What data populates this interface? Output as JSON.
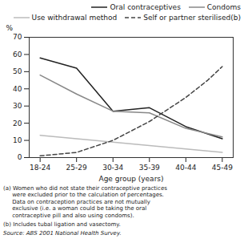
{
  "chart_data": {
    "type": "line",
    "xlabel": "Age group (years)",
    "ylabel": "%",
    "x": [
      0,
      1,
      2,
      3,
      4,
      5
    ],
    "xlim": [
      -0.3,
      5.3
    ],
    "xticks": [
      {
        "value": 0,
        "label": "18-24"
      },
      {
        "value": 1,
        "label": "25-29"
      },
      {
        "value": 2,
        "label": "30-34"
      },
      {
        "value": 3,
        "label": "35-39"
      },
      {
        "value": 4,
        "label": "40-44"
      },
      {
        "value": 5,
        "label": "45-49"
      }
    ],
    "ylim": [
      0,
      70
    ],
    "yticks": [
      0,
      10,
      20,
      30,
      40,
      50,
      60,
      70
    ],
    "legend": "upper right",
    "series": [
      {
        "name": "Oral contraceptives",
        "color": "#222222",
        "values": [
          58,
          52,
          27,
          29,
          18,
          11
        ]
      },
      {
        "name": "Condoms",
        "color": "#888888",
        "values": [
          48,
          37,
          27,
          26,
          17,
          12
        ]
      },
      {
        "name": "Use withdrawal method",
        "color": "#bbbbbb",
        "values": [
          13,
          11,
          9,
          7,
          5,
          3
        ]
      },
      {
        "name": "Self or partner sterilised(b)",
        "color": "#444444",
        "line_style": "dashed",
        "x": [
          0,
          1,
          2,
          3,
          4,
          4.6,
          5
        ],
        "values": [
          1,
          3,
          10,
          21,
          35,
          45,
          53
        ]
      }
    ],
    "annotations": [
      "(a) Women who did not state their contraceptive practices\n     were excluded prior to the calculation of percentages.\n     Data on contraception practices are not mutually\n     exclusive (i.e. a woman could be taking the oral\n     contraceptive pill and also using condoms).",
      "(b) Includes tubal ligation and vasectomy.",
      "Source: ABS 2001 National Health Survey."
    ]
  }
}
